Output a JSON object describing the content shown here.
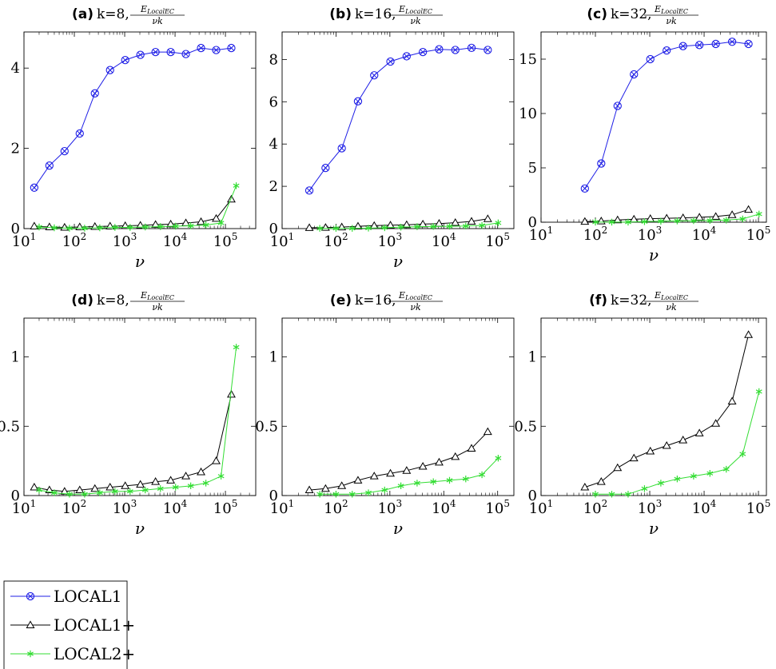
{
  "chart_data": [
    {
      "panel": "(a)",
      "type": "line",
      "title_bold": "(a)",
      "title_text": "k=8,",
      "title_frac_num": "E",
      "title_frac_num_sub": "LocalEC",
      "title_frac_den": "νk",
      "xlabel": "ν",
      "xscale": "log",
      "xlim": [
        10,
        400000
      ],
      "ylim": [
        0,
        4.9
      ],
      "yticks": [
        {
          "v": 0,
          "label": "0"
        },
        {
          "v": 2,
          "label": "2"
        },
        {
          "v": 4,
          "label": "4"
        }
      ],
      "series": [
        {
          "name": "LOCAL1",
          "x": [
            16,
            32,
            64,
            128,
            256,
            512,
            1024,
            2048,
            4096,
            8192,
            16384,
            32768,
            65536,
            131072
          ],
          "y": [
            1.02,
            1.57,
            1.93,
            2.37,
            3.37,
            3.95,
            4.2,
            4.33,
            4.4,
            4.4,
            4.35,
            4.5,
            4.45,
            4.5
          ]
        },
        {
          "name": "LOCAL1+",
          "x": [
            16,
            32,
            64,
            128,
            256,
            512,
            1024,
            2048,
            4096,
            8192,
            16384,
            32768,
            65536,
            131072
          ],
          "y": [
            0.06,
            0.04,
            0.03,
            0.04,
            0.05,
            0.06,
            0.07,
            0.08,
            0.1,
            0.11,
            0.14,
            0.17,
            0.25,
            0.73
          ]
        },
        {
          "name": "LOCAL2+",
          "x": [
            20,
            40,
            80,
            160,
            320,
            640,
            1280,
            2560,
            5120,
            10240,
            20480,
            40960,
            81920,
            163840
          ],
          "y": [
            0.04,
            0.02,
            0.01,
            0.01,
            0.02,
            0.03,
            0.03,
            0.04,
            0.05,
            0.06,
            0.07,
            0.09,
            0.14,
            1.07
          ]
        }
      ]
    },
    {
      "panel": "(b)",
      "type": "line",
      "title_bold": "(b)",
      "title_text": "k=16,",
      "title_frac_num": "E",
      "title_frac_num_sub": "LocalEC",
      "title_frac_den": "νk",
      "xlabel": "ν",
      "xscale": "log",
      "xlim": [
        10,
        200000
      ],
      "ylim": [
        0,
        9.3
      ],
      "yticks": [
        {
          "v": 0,
          "label": "0"
        },
        {
          "v": 2,
          "label": "2"
        },
        {
          "v": 4,
          "label": "4"
        },
        {
          "v": 6,
          "label": "6"
        },
        {
          "v": 8,
          "label": "8"
        }
      ],
      "series": [
        {
          "name": "LOCAL1",
          "x": [
            32,
            64,
            128,
            256,
            512,
            1024,
            2048,
            4096,
            8192,
            16384,
            32768,
            65536
          ],
          "y": [
            1.8,
            2.87,
            3.8,
            6.02,
            7.25,
            7.9,
            8.15,
            8.35,
            8.48,
            8.45,
            8.55,
            8.45
          ]
        },
        {
          "name": "LOCAL1+",
          "x": [
            32,
            64,
            128,
            256,
            512,
            1024,
            2048,
            4096,
            8192,
            16384,
            32768,
            65536
          ],
          "y": [
            0.04,
            0.05,
            0.07,
            0.11,
            0.14,
            0.16,
            0.18,
            0.21,
            0.24,
            0.28,
            0.34,
            0.46
          ]
        },
        {
          "name": "LOCAL2+",
          "x": [
            50,
            100,
            200,
            400,
            800,
            1600,
            3200,
            6400,
            12800,
            25600,
            51200,
            102400
          ],
          "y": [
            0.01,
            0.01,
            0.01,
            0.02,
            0.04,
            0.07,
            0.09,
            0.1,
            0.11,
            0.12,
            0.15,
            0.27
          ]
        }
      ]
    },
    {
      "panel": "(c)",
      "type": "line",
      "title_bold": "(c)",
      "title_text": "k=32,",
      "title_frac_num": "E",
      "title_frac_num_sub": "LocalEC",
      "title_frac_den": "νk",
      "xlabel": "ν",
      "xscale": "log",
      "xlim": [
        10,
        140000
      ],
      "ylim": [
        0,
        17.5
      ],
      "yticks": [
        {
          "v": 0,
          "label": "0"
        },
        {
          "v": 5,
          "label": "5"
        },
        {
          "v": 10,
          "label": "10"
        },
        {
          "v": 15,
          "label": "15"
        }
      ],
      "series": [
        {
          "name": "LOCAL1",
          "x": [
            64,
            128,
            256,
            512,
            1024,
            2048,
            4096,
            8192,
            16384,
            32768,
            65536
          ],
          "y": [
            3.1,
            5.4,
            10.7,
            13.6,
            15.0,
            15.8,
            16.2,
            16.3,
            16.4,
            16.6,
            16.4
          ]
        },
        {
          "name": "LOCAL1+",
          "x": [
            64,
            128,
            256,
            512,
            1024,
            2048,
            4096,
            8192,
            16384,
            32768,
            65536
          ],
          "y": [
            0.06,
            0.1,
            0.2,
            0.27,
            0.32,
            0.36,
            0.4,
            0.45,
            0.52,
            0.68,
            1.16
          ]
        },
        {
          "name": "LOCAL2+",
          "x": [
            100,
            200,
            400,
            800,
            1600,
            3200,
            6400,
            12800,
            25600,
            51200,
            102400
          ],
          "y": [
            0.01,
            0.01,
            0.01,
            0.05,
            0.09,
            0.12,
            0.14,
            0.16,
            0.19,
            0.3,
            0.75
          ]
        }
      ]
    },
    {
      "panel": "(d)",
      "type": "line",
      "title_bold": "(d)",
      "title_text": "k=8,",
      "title_frac_num": "E",
      "title_frac_num_sub": "LocalEC",
      "title_frac_den": "νk",
      "xlabel": "ν",
      "xscale": "log",
      "xlim": [
        10,
        400000
      ],
      "ylim": [
        0,
        1.28
      ],
      "yticks": [
        {
          "v": 0,
          "label": "0"
        },
        {
          "v": 0.5,
          "label": "0.5"
        },
        {
          "v": 1,
          "label": "1"
        }
      ],
      "series": [
        {
          "name": "LOCAL1+",
          "x": [
            16,
            32,
            64,
            128,
            256,
            512,
            1024,
            2048,
            4096,
            8192,
            16384,
            32768,
            65536,
            131072
          ],
          "y": [
            0.06,
            0.04,
            0.03,
            0.04,
            0.05,
            0.06,
            0.07,
            0.08,
            0.1,
            0.11,
            0.14,
            0.17,
            0.25,
            0.73
          ]
        },
        {
          "name": "LOCAL2+",
          "x": [
            20,
            40,
            80,
            160,
            320,
            640,
            1280,
            2560,
            5120,
            10240,
            20480,
            40960,
            81920,
            163840
          ],
          "y": [
            0.04,
            0.02,
            0.01,
            0.01,
            0.02,
            0.03,
            0.03,
            0.04,
            0.05,
            0.06,
            0.07,
            0.09,
            0.14,
            1.07
          ]
        }
      ]
    },
    {
      "panel": "(e)",
      "type": "line",
      "title_bold": "(e)",
      "title_text": "k=16,",
      "title_frac_num": "E",
      "title_frac_num_sub": "LocalEC",
      "title_frac_den": "νk",
      "xlabel": "ν",
      "xscale": "log",
      "xlim": [
        10,
        200000
      ],
      "ylim": [
        0,
        1.28
      ],
      "yticks": [
        {
          "v": 0,
          "label": "0"
        },
        {
          "v": 0.5,
          "label": "0.5"
        },
        {
          "v": 1,
          "label": "1"
        }
      ],
      "series": [
        {
          "name": "LOCAL1+",
          "x": [
            32,
            64,
            128,
            256,
            512,
            1024,
            2048,
            4096,
            8192,
            16384,
            32768,
            65536
          ],
          "y": [
            0.04,
            0.05,
            0.07,
            0.11,
            0.14,
            0.16,
            0.18,
            0.21,
            0.24,
            0.28,
            0.34,
            0.46
          ]
        },
        {
          "name": "LOCAL2+",
          "x": [
            50,
            100,
            200,
            400,
            800,
            1600,
            3200,
            6400,
            12800,
            25600,
            51200,
            102400
          ],
          "y": [
            0.01,
            0.01,
            0.01,
            0.02,
            0.04,
            0.07,
            0.09,
            0.1,
            0.11,
            0.12,
            0.15,
            0.27
          ]
        }
      ]
    },
    {
      "panel": "(f)",
      "type": "line",
      "title_bold": "(f)",
      "title_text": "k=32,",
      "title_frac_num": "E",
      "title_frac_num_sub": "LocalEC",
      "title_frac_den": "νk",
      "xlabel": "ν",
      "xscale": "log",
      "xlim": [
        10,
        140000
      ],
      "ylim": [
        0,
        1.28
      ],
      "yticks": [
        {
          "v": 0,
          "label": "0"
        },
        {
          "v": 0.5,
          "label": "0.5"
        },
        {
          "v": 1,
          "label": "1"
        }
      ],
      "series": [
        {
          "name": "LOCAL1+",
          "x": [
            64,
            128,
            256,
            512,
            1024,
            2048,
            4096,
            8192,
            16384,
            32768,
            65536
          ],
          "y": [
            0.06,
            0.1,
            0.2,
            0.27,
            0.32,
            0.36,
            0.4,
            0.45,
            0.52,
            0.68,
            1.16
          ]
        },
        {
          "name": "LOCAL2+",
          "x": [
            100,
            200,
            400,
            800,
            1600,
            3200,
            6400,
            12800,
            25600,
            51200,
            102400
          ],
          "y": [
            0.01,
            0.01,
            0.01,
            0.05,
            0.09,
            0.12,
            0.14,
            0.16,
            0.19,
            0.3,
            0.75
          ]
        }
      ]
    }
  ],
  "series_styles": {
    "LOCAL1": {
      "color": "#1f1fe6",
      "marker": "otimes"
    },
    "LOCAL1+": {
      "color": "#000000",
      "marker": "triangle"
    },
    "LOCAL2+": {
      "color": "#33dd33",
      "marker": "asterisk"
    }
  },
  "xticks": [
    {
      "v": 10,
      "base": "10",
      "exp": "1"
    },
    {
      "v": 100,
      "base": "10",
      "exp": "2"
    },
    {
      "v": 1000,
      "base": "10",
      "exp": "3"
    },
    {
      "v": 10000,
      "base": "10",
      "exp": "4"
    },
    {
      "v": 100000,
      "base": "10",
      "exp": "5"
    }
  ],
  "legend": {
    "entries": [
      {
        "label": "LOCAL1",
        "series": "LOCAL1"
      },
      {
        "label": "LOCAL1+",
        "series": "LOCAL1+"
      },
      {
        "label": "LOCAL2+",
        "series": "LOCAL2+"
      }
    ]
  }
}
